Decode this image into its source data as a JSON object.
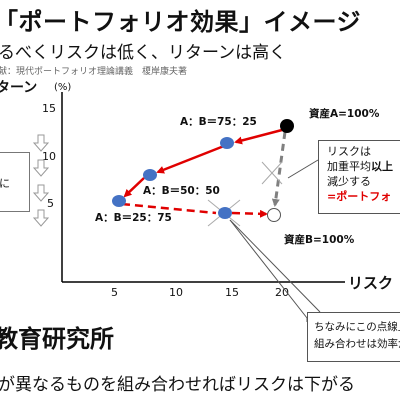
{
  "slide": {
    "title": "「ポートフォリオ効果」イメージ",
    "subtitle": "るべくリスクは低く、リターンは高く",
    "reference": "献：現代ポートフォリオ理論講義　榎岸康夫著",
    "organization": "教育研究所",
    "bottom_text": "が異なるものを組み合わせればリスクは下がる"
  },
  "chart": {
    "ylabel": "ターン",
    "yunit": "(%)",
    "xlabel": "リスク",
    "x_ticks": [
      "5",
      "10",
      "15",
      "20"
    ],
    "y_ticks": [
      "15",
      "10",
      "5"
    ],
    "point_labels": {
      "asset_a": "資産A=100%",
      "asset_b": "資産B=100%",
      "mix_75_25": "A：B＝75：25",
      "mix_50_50": "A：B＝50：50",
      "mix_25_75": "A：B＝25：75"
    }
  },
  "callout": {
    "line1": "リスクは",
    "line2_prefix": "加重平均",
    "line2_emph": "以上",
    "line3": "減少する",
    "line4": "=ポートフォ"
  },
  "leftbox": {
    "text": "に"
  },
  "note": {
    "line1": "ちなみにこの点線上",
    "line2": "組み合わせは効率が"
  },
  "colors": {
    "arrow": "#e00000",
    "point": "#4472c4",
    "dashed": "#808080",
    "accent": "#e00000"
  },
  "chart_data": {
    "type": "scatter",
    "x_ticks": [
      5,
      10,
      15,
      20
    ],
    "y_ticks": [
      5,
      10,
      15
    ],
    "points": [
      {
        "label": "資産A=100%",
        "x": 24.8,
        "y": 10.6
      },
      {
        "label": "A：B＝75：25",
        "x": 19.3,
        "y": 9.4
      },
      {
        "label": "A：B＝50：50",
        "x": 9.7,
        "y": 7.2
      },
      {
        "label": "A：B＝25：75",
        "x": 5.2,
        "y": 5.4
      },
      {
        "label": "",
        "x": 14.3,
        "y": 4.9
      },
      {
        "label": "資産B=100%",
        "x": 21.2,
        "y": 4.6
      }
    ]
  }
}
